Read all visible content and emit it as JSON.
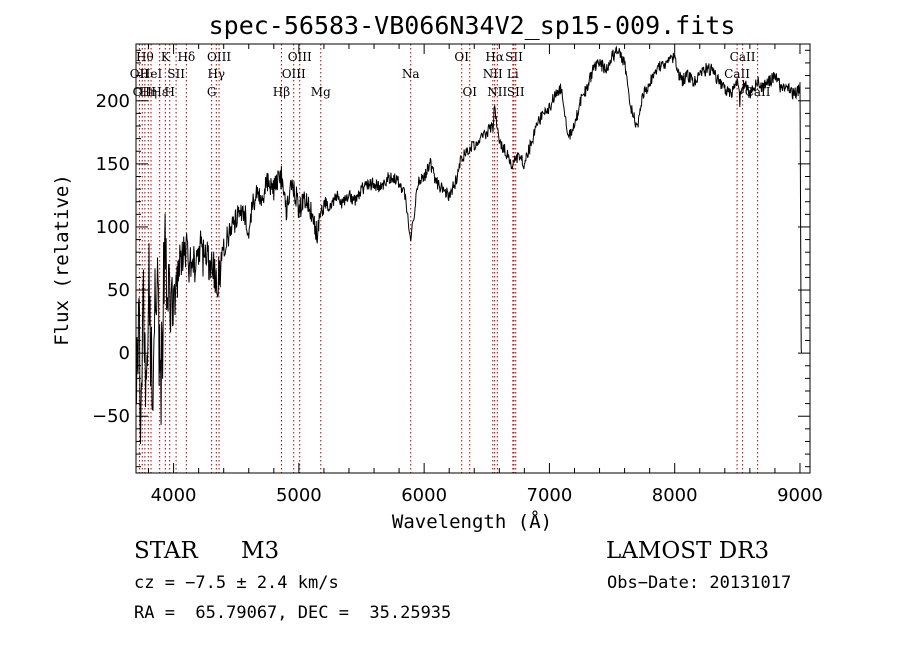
{
  "chart_data": {
    "type": "line",
    "title": "spec-56583-VB066N34V2_sp15-009.fits",
    "xlabel": "Wavelength (Å)",
    "ylabel": "Flux (relative)",
    "xlim": [
      3700,
      9080
    ],
    "ylim": [
      -95,
      245
    ],
    "xticks": [
      4000,
      5000,
      6000,
      7000,
      8000,
      9000
    ],
    "yticks": [
      -50,
      0,
      50,
      100,
      150,
      200
    ],
    "grid": false,
    "series": [
      {
        "name": "flux",
        "x": [
          3700,
          3720,
          3740,
          3760,
          3780,
          3800,
          3820,
          3840,
          3860,
          3880,
          3900,
          3920,
          3940,
          3960,
          3980,
          4000,
          4050,
          4100,
          4150,
          4200,
          4250,
          4300,
          4340,
          4400,
          4450,
          4500,
          4550,
          4600,
          4650,
          4700,
          4750,
          4800,
          4861,
          4900,
          4950,
          5000,
          5050,
          5100,
          5150,
          5175,
          5200,
          5250,
          5300,
          5350,
          5400,
          5450,
          5500,
          5550,
          5600,
          5650,
          5700,
          5750,
          5800,
          5850,
          5893,
          5920,
          5950,
          6000,
          6050,
          6100,
          6150,
          6200,
          6250,
          6300,
          6350,
          6400,
          6450,
          6500,
          6550,
          6563,
          6600,
          6650,
          6700,
          6750,
          6800,
          6850,
          6900,
          6950,
          7000,
          7050,
          7100,
          7150,
          7200,
          7250,
          7300,
          7350,
          7400,
          7450,
          7500,
          7550,
          7600,
          7650,
          7680,
          7700,
          7750,
          7800,
          7850,
          7900,
          7950,
          8000,
          8050,
          8100,
          8150,
          8200,
          8250,
          8300,
          8350,
          8400,
          8450,
          8498,
          8520,
          8542,
          8560,
          8600,
          8662,
          8700,
          8750,
          8800,
          8850,
          8900,
          8950,
          9000,
          9010,
          9012
        ],
        "y": [
          -60,
          40,
          -80,
          60,
          -40,
          80,
          0,
          -30,
          70,
          20,
          -20,
          50,
          90,
          30,
          60,
          40,
          70,
          80,
          65,
          85,
          70,
          75,
          50,
          85,
          95,
          105,
          115,
          100,
          125,
          120,
          135,
          130,
          140,
          110,
          135,
          115,
          120,
          110,
          95,
          110,
          120,
          115,
          125,
          118,
          125,
          120,
          130,
          132,
          135,
          130,
          138,
          140,
          135,
          125,
          90,
          110,
          135,
          140,
          150,
          135,
          130,
          125,
          135,
          155,
          160,
          165,
          170,
          175,
          180,
          195,
          165,
          160,
          150,
          155,
          150,
          165,
          180,
          190,
          195,
          205,
          210,
          170,
          180,
          200,
          210,
          225,
          230,
          225,
          235,
          240,
          230,
          195,
          185,
          180,
          205,
          215,
          225,
          228,
          230,
          235,
          215,
          220,
          215,
          220,
          225,
          225,
          215,
          210,
          205,
          215,
          200,
          210,
          215,
          205,
          215,
          210,
          215,
          220,
          210,
          212,
          205,
          210,
          0,
          0
        ]
      }
    ],
    "lines": [
      {
        "wave": 3727,
        "label": "OII",
        "row": 2
      },
      {
        "wave": 3750,
        "label": "OII",
        "row": 3
      },
      {
        "wave": 3771,
        "label": "Hθ",
        "row": 1
      },
      {
        "wave": 3798,
        "label": "Hη",
        "row": 3
      },
      {
        "wave": 3820,
        "label": "HeI",
        "row": 2
      },
      {
        "wave": 3889,
        "label": "Hε",
        "row": 3
      },
      {
        "wave": 3934,
        "label": "K",
        "row": 1
      },
      {
        "wave": 3969,
        "label": "H",
        "row": 3
      },
      {
        "wave": 4020,
        "label": "SII",
        "row": 2
      },
      {
        "wave": 4102,
        "label": "Hδ",
        "row": 1
      },
      {
        "wave": 4304,
        "label": "G",
        "row": 3
      },
      {
        "wave": 4341,
        "label": "Hγ",
        "row": 2
      },
      {
        "wave": 4363,
        "label": "OIII",
        "row": 1
      },
      {
        "wave": 4861,
        "label": "Hβ",
        "row": 3
      },
      {
        "wave": 4959,
        "label": "OIII",
        "row": 2
      },
      {
        "wave": 5007,
        "label": "OIII",
        "row": 1
      },
      {
        "wave": 5175,
        "label": "Mg",
        "row": 3
      },
      {
        "wave": 5893,
        "label": "Na",
        "row": 2
      },
      {
        "wave": 6300,
        "label": "OI",
        "row": 1
      },
      {
        "wave": 6364,
        "label": "OI",
        "row": 3
      },
      {
        "wave": 6548,
        "label": "NII",
        "row": 2
      },
      {
        "wave": 6563,
        "label": "Hα",
        "row": 1
      },
      {
        "wave": 6584,
        "label": "NII",
        "row": 3
      },
      {
        "wave": 6708,
        "label": "Li",
        "row": 2
      },
      {
        "wave": 6717,
        "label": "SII",
        "row": 1
      },
      {
        "wave": 6731,
        "label": "SII",
        "row": 3
      },
      {
        "wave": 8498,
        "label": "CaII",
        "row": 2
      },
      {
        "wave": 8542,
        "label": "CaII",
        "row": 1
      },
      {
        "wave": 8662,
        "label": "CaII",
        "row": 3
      }
    ]
  },
  "info": {
    "class": "STAR",
    "subclass": "M3",
    "survey": "LAMOST DR3",
    "cz": "cz = −7.5 ± 2.4 km/s",
    "obs_date": "Obs−Date: 20131017",
    "coords": "RA =  65.79067, DEC =  35.25935"
  },
  "colors": {
    "line_marker": "#b00000",
    "spectrum": "#000000"
  }
}
